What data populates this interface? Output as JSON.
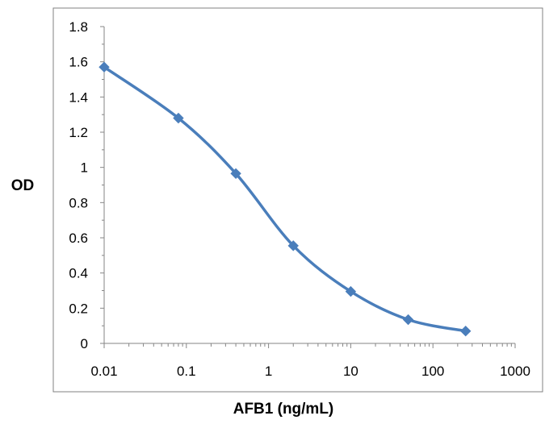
{
  "chart_data": {
    "type": "line",
    "title": "",
    "xlabel": "AFB1 (ng/mL)",
    "ylabel": "OD",
    "x_scale": "log",
    "xlim": [
      0.01,
      1000
    ],
    "ylim": [
      0,
      1.8
    ],
    "x_ticks": [
      "0.01",
      "0.1",
      "1",
      "10",
      "100",
      "1000"
    ],
    "y_ticks": [
      "0",
      "0.2",
      "0.4",
      "0.6",
      "0.8",
      "1",
      "1.2",
      "1.4",
      "1.6",
      "1.8"
    ],
    "grid": false,
    "legend": "none",
    "series": [
      {
        "marker": "diamond",
        "color": "#4a7ebb",
        "x": [
          0.01,
          0.08,
          0.4,
          2,
          10,
          50,
          250
        ],
        "y": [
          1.57,
          1.28,
          0.965,
          0.555,
          0.295,
          0.135,
          0.07
        ]
      }
    ]
  }
}
